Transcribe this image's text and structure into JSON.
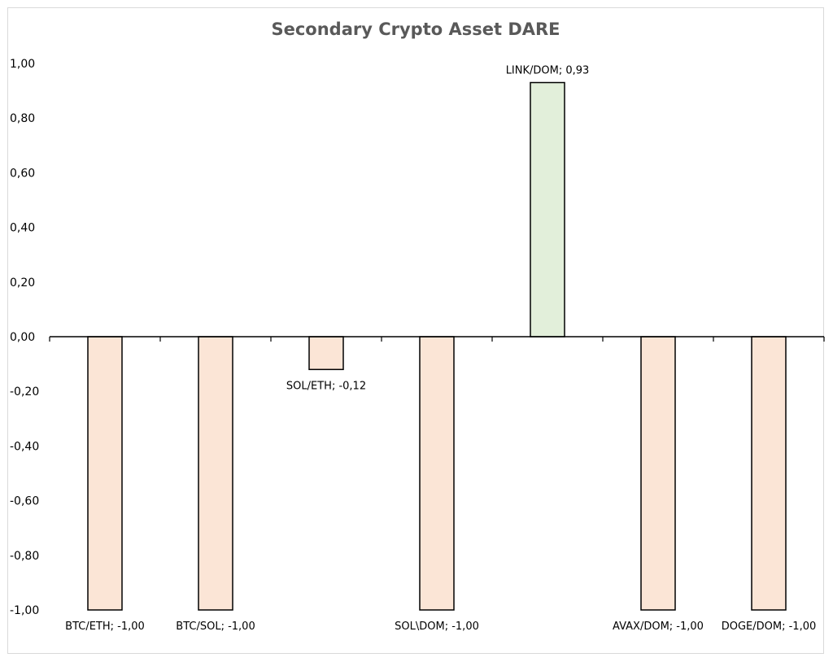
{
  "chart_data": {
    "type": "bar",
    "title": "Secondary Crypto Asset DARE",
    "xlabel": "",
    "ylabel": "",
    "ylim": [
      -1.0,
      1.0
    ],
    "y_ticks": [
      "1,00",
      "0,80",
      "0,60",
      "0,40",
      "0,20",
      "0,00",
      "-0,20",
      "-0,40",
      "-0,60",
      "-0,80",
      "-1,00"
    ],
    "y_tick_values": [
      1.0,
      0.8,
      0.6,
      0.4,
      0.2,
      0.0,
      -0.2,
      -0.4,
      -0.6,
      -0.8,
      -1.0
    ],
    "categories": [
      "BTC/ETH",
      "BTC/SOL",
      "SOL/ETH",
      "SOL\\DOM",
      "LINK/DOM",
      "AVAX/DOM",
      "DOGE/DOM"
    ],
    "values": [
      -1.0,
      -1.0,
      -0.12,
      -1.0,
      0.93,
      -1.0,
      -1.0
    ],
    "data_labels": [
      "BTC/ETH; -1,00",
      "BTC/SOL; -1,00",
      "SOL/ETH; -0,12",
      "SOL\\DOM; -1,00",
      "LINK/DOM; 0,93",
      "AVAX/DOM; -1,00",
      "DOGE/DOM; -1,00"
    ],
    "grid": false,
    "legend": "none",
    "colors": {
      "positive_fill": "#e2efda",
      "negative_fill": "#fbe5d6",
      "bar_stroke": "#000000",
      "axis": "#000000",
      "text": "#000000",
      "title": "#595959"
    }
  }
}
